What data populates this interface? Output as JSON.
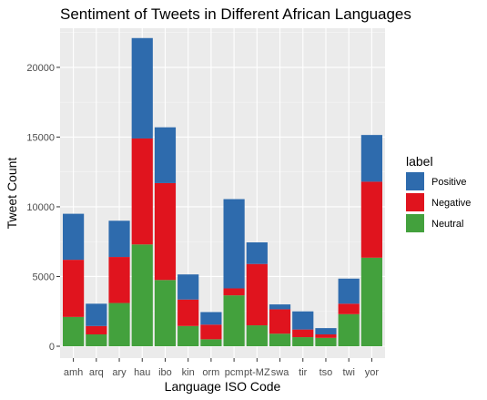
{
  "chart_data": {
    "type": "bar",
    "stacked": true,
    "title": "Sentiment of Tweets in Different African Languages",
    "xlabel": "Language ISO Code",
    "ylabel": "Tweet Count",
    "ylim": [
      0,
      23000
    ],
    "yticks": [
      0,
      5000,
      10000,
      15000,
      20000
    ],
    "grid": true,
    "legend": {
      "title": "label",
      "position": "right"
    },
    "categories": [
      "amh",
      "arq",
      "ary",
      "hau",
      "ibo",
      "kin",
      "orm",
      "pcm",
      "pt-MZ",
      "swa",
      "tir",
      "tso",
      "twi",
      "yor"
    ],
    "series": [
      {
        "name": "Neutral",
        "color": "#43a13d",
        "values": [
          2100,
          850,
          3100,
          7300,
          4750,
          1450,
          500,
          3650,
          1500,
          900,
          650,
          600,
          2300,
          6350
        ]
      },
      {
        "name": "Negative",
        "color": "#e0141e",
        "values": [
          4100,
          600,
          3300,
          7600,
          6950,
          1900,
          1050,
          500,
          4400,
          1750,
          550,
          250,
          750,
          5450
        ]
      },
      {
        "name": "Positive",
        "color": "#2e6bad",
        "values": [
          3300,
          1600,
          2600,
          7200,
          4000,
          1800,
          900,
          6400,
          1550,
          350,
          1300,
          450,
          1800,
          3350
        ]
      }
    ],
    "legend_order": [
      "Positive",
      "Negative",
      "Neutral"
    ]
  }
}
